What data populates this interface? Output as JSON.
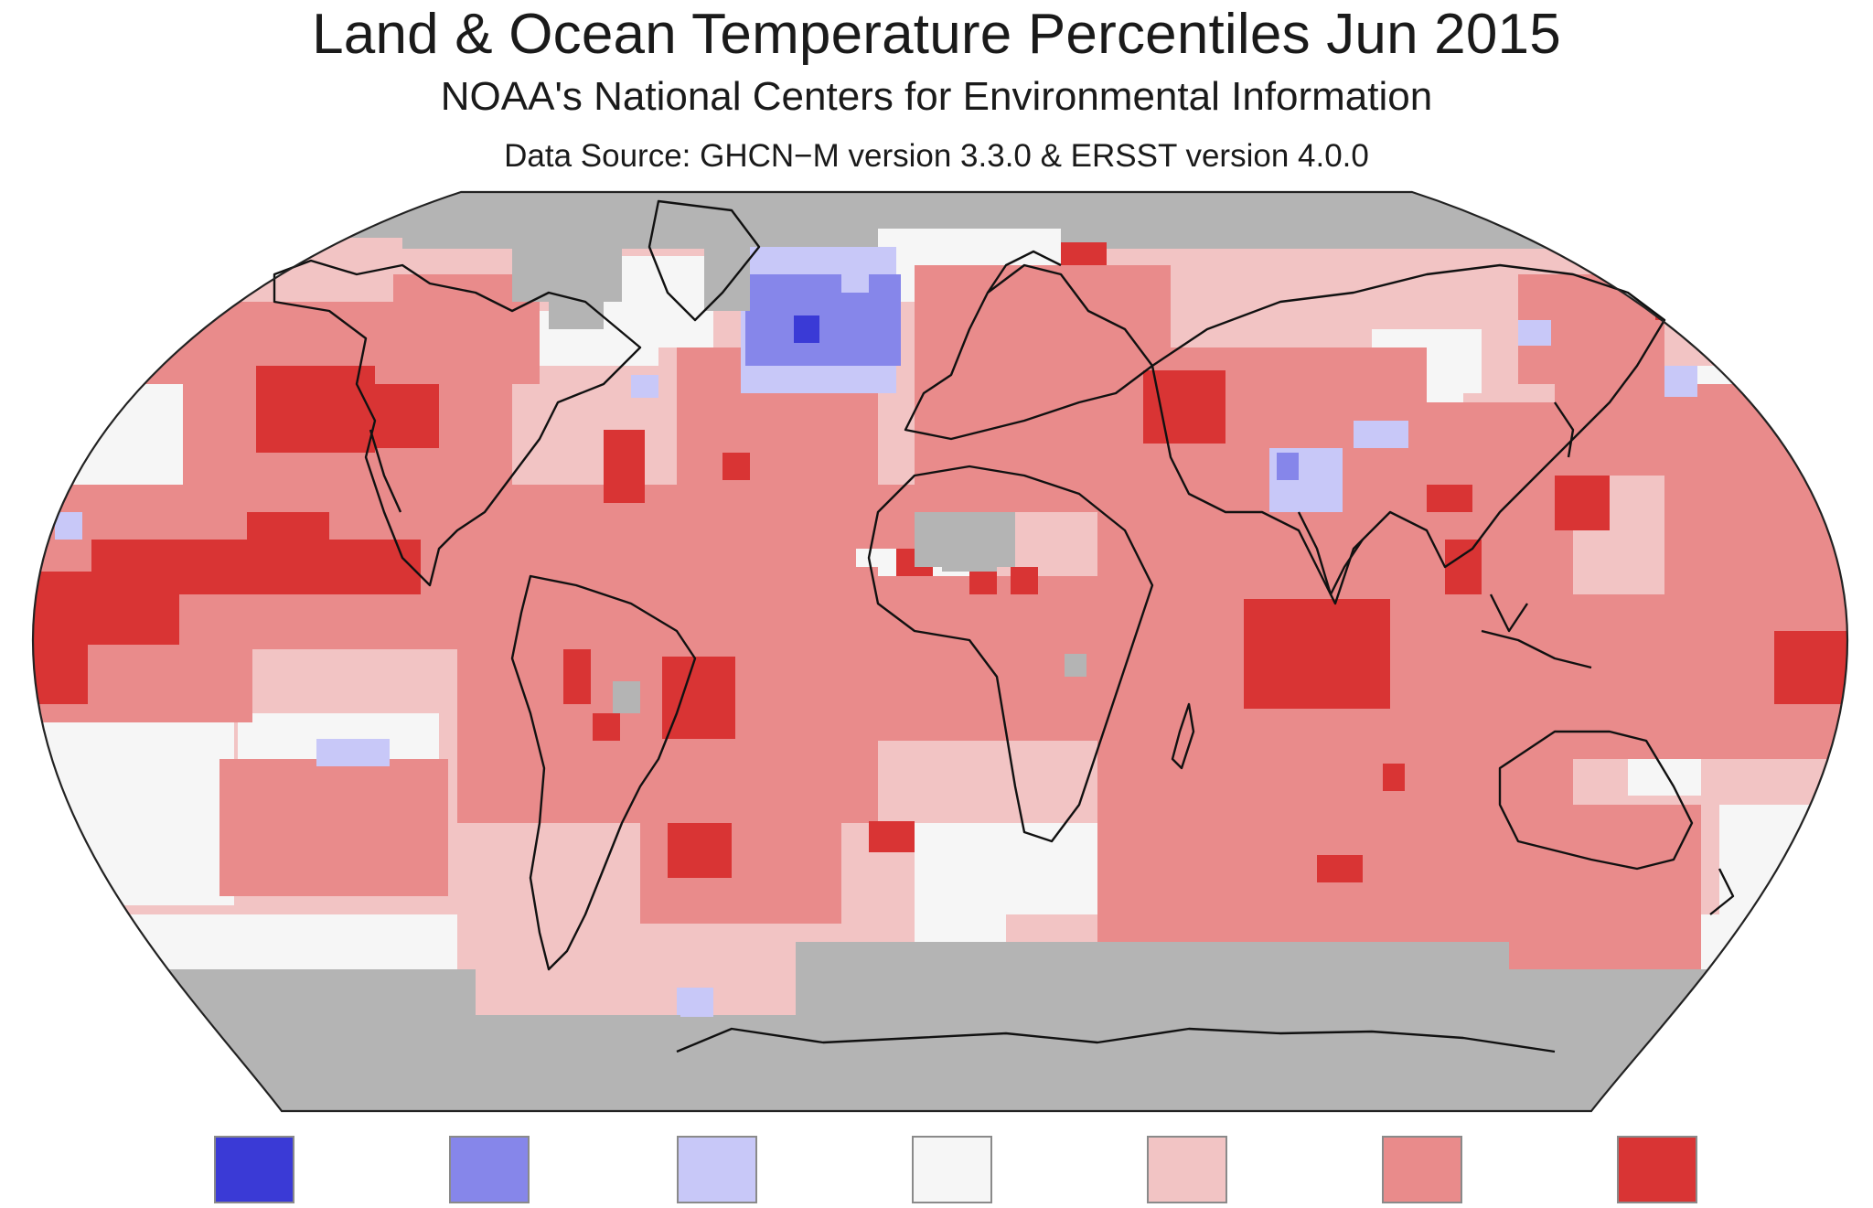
{
  "map": {
    "title": "Land & Ocean Temperature Percentiles Jun 2015",
    "subtitle": "NOAA's National Centers for Environmental Information",
    "source": "Data Source: GHCN−M version 3.3.0 & ERSST version 4.0.0",
    "colors": {
      "record_cold": "#3a3ad6",
      "much_below": "#8686ea",
      "below": "#c8c8f8",
      "near": "#f6f6f6",
      "above": "#f2c4c4",
      "much_above": "#e98b8b",
      "record_warm": "#d93434",
      "missing": "#b4b4b4",
      "coast": "#111111"
    }
  },
  "legend": {
    "swatches": [
      {
        "key": "record_cold",
        "color": "#3a3ad6"
      },
      {
        "key": "much_below",
        "color": "#8686ea"
      },
      {
        "key": "below",
        "color": "#c8c8f8"
      },
      {
        "key": "near",
        "color": "#f6f6f6"
      },
      {
        "key": "above",
        "color": "#f2c4c4"
      },
      {
        "key": "much_above",
        "color": "#e98b8b"
      },
      {
        "key": "record_warm",
        "color": "#d93434"
      }
    ]
  }
}
